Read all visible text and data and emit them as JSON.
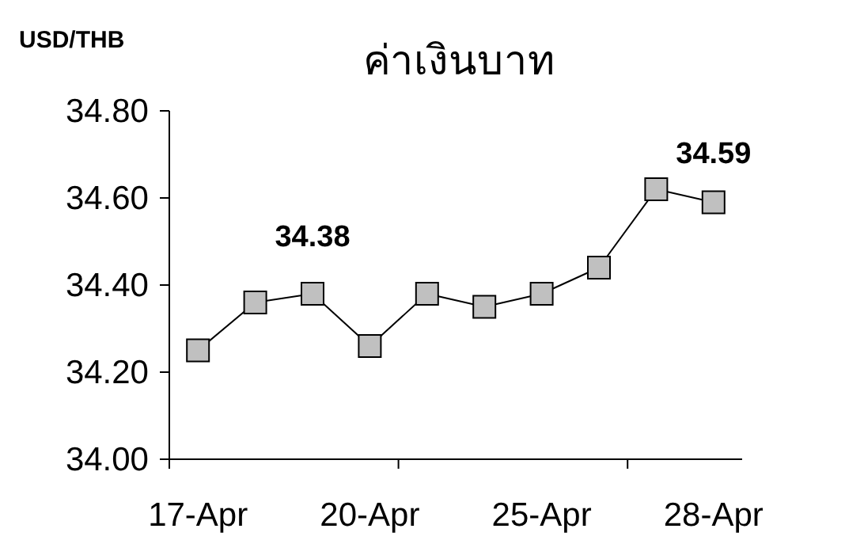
{
  "chart_data": {
    "type": "line",
    "title": "ค่าเงินบาท",
    "ylabel": "USD/THB",
    "categories": [
      "17-Apr",
      null,
      null,
      "20-Apr",
      null,
      null,
      "25-Apr",
      null,
      null,
      "28-Apr"
    ],
    "series": [
      {
        "color": "#c0c0c0",
        "values": [
          34.25,
          34.36,
          34.38,
          34.26,
          34.38,
          34.35,
          34.38,
          34.44,
          34.62,
          34.59
        ],
        "value_labels": [
          null,
          null,
          "34.38",
          null,
          null,
          null,
          null,
          null,
          null,
          "34.59"
        ]
      }
    ],
    "ylim": [
      34.0,
      34.8
    ],
    "yticks": [
      {
        "value": 34.0,
        "label": "34.00"
      },
      {
        "value": 34.2,
        "label": "34.20"
      },
      {
        "value": 34.4,
        "label": "34.40"
      },
      {
        "value": 34.6,
        "label": "34.60"
      },
      {
        "value": 34.8,
        "label": "34.80"
      }
    ],
    "marker": "square",
    "line_style": "solid"
  }
}
